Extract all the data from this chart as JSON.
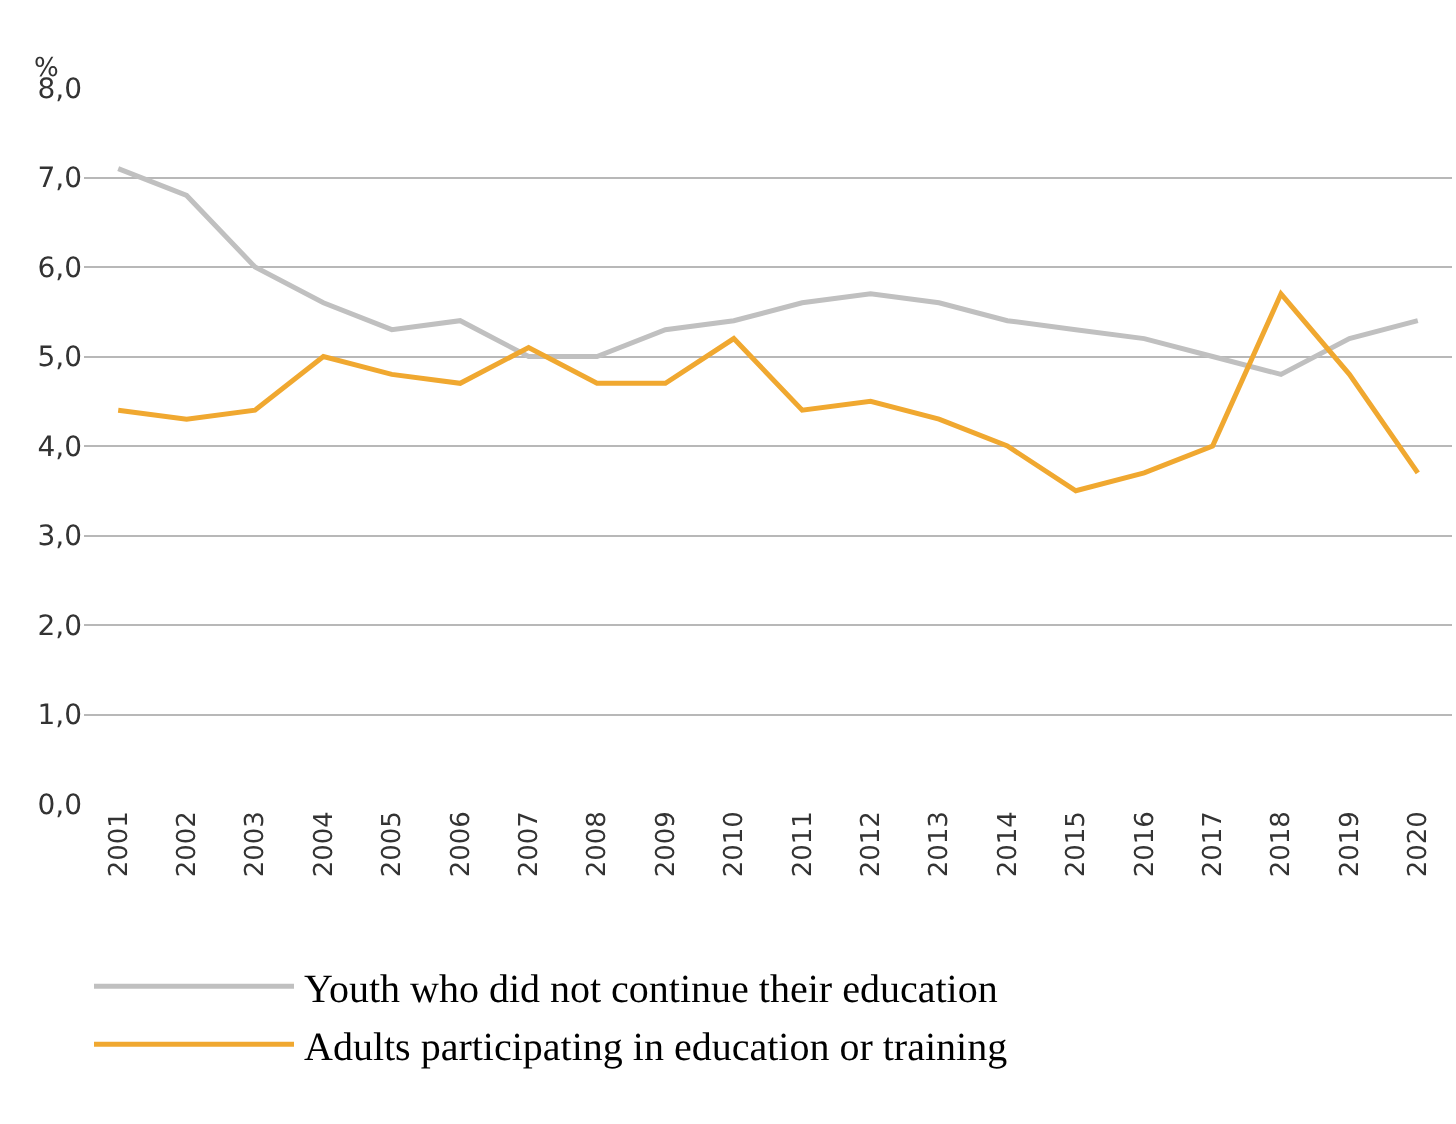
{
  "chart_data": {
    "type": "line",
    "ylabel": "%",
    "categories": [
      "2001",
      "2002",
      "2003",
      "2004",
      "2005",
      "2006",
      "2007",
      "2008",
      "2009",
      "2010",
      "2011",
      "2012",
      "2013",
      "2014",
      "2015",
      "2016",
      "2017",
      "2018",
      "2019",
      "2020"
    ],
    "series": [
      {
        "name": "Youth who did not continue their education",
        "color": "#c0c0c0",
        "values": [
          7.1,
          6.8,
          6.0,
          5.6,
          5.3,
          5.4,
          5.0,
          5.0,
          5.3,
          5.4,
          5.6,
          5.7,
          5.6,
          5.4,
          5.3,
          5.2,
          5.0,
          4.8,
          5.2,
          5.4
        ]
      },
      {
        "name": "Adults participating in education or training",
        "color": "#f0a830",
        "values": [
          4.4,
          4.3,
          4.4,
          5.0,
          4.8,
          4.7,
          5.1,
          4.7,
          4.7,
          5.2,
          4.4,
          4.5,
          4.3,
          4.0,
          3.5,
          3.7,
          4.0,
          5.7,
          4.8,
          3.7
        ]
      }
    ],
    "ylim": [
      0,
      8
    ],
    "yticks": [
      {
        "value": 0,
        "label": "0,0"
      },
      {
        "value": 1,
        "label": "1,0"
      },
      {
        "value": 2,
        "label": "2,0"
      },
      {
        "value": 3,
        "label": "3,0"
      },
      {
        "value": 4,
        "label": "4,0"
      },
      {
        "value": 5,
        "label": "5,0"
      },
      {
        "value": 6,
        "label": "6,0"
      },
      {
        "value": 7,
        "label": "7,0"
      },
      {
        "value": 8,
        "label": "8,0"
      }
    ],
    "grid": "y",
    "legend": "bottom",
    "marker": "none",
    "line_style": "solid"
  }
}
